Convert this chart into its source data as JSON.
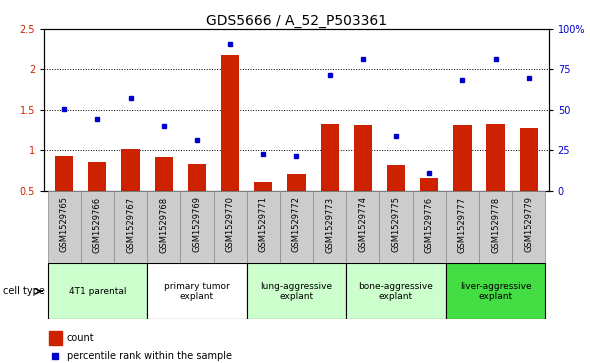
{
  "title": "GDS5666 / A_52_P503361",
  "samples": [
    "GSM1529765",
    "GSM1529766",
    "GSM1529767",
    "GSM1529768",
    "GSM1529769",
    "GSM1529770",
    "GSM1529771",
    "GSM1529772",
    "GSM1529773",
    "GSM1529774",
    "GSM1529775",
    "GSM1529776",
    "GSM1529777",
    "GSM1529778",
    "GSM1529779"
  ],
  "bar_values": [
    0.93,
    0.85,
    1.02,
    0.92,
    0.83,
    2.18,
    0.6,
    0.71,
    1.33,
    1.31,
    0.82,
    0.65,
    1.31,
    1.33,
    1.27
  ],
  "dot_values": [
    1.51,
    1.38,
    1.65,
    1.3,
    1.12,
    2.32,
    0.95,
    0.93,
    1.93,
    2.13,
    1.18,
    0.72,
    1.87,
    2.13,
    1.9
  ],
  "bar_color": "#cc2200",
  "dot_color": "#0000cc",
  "ylim_left": [
    0.5,
    2.5
  ],
  "ylim_right": [
    0,
    100
  ],
  "yticks_left": [
    0.5,
    1.0,
    1.5,
    2.0,
    2.5
  ],
  "ytick_labels_left": [
    "0.5",
    "1",
    "1.5",
    "2",
    "2.5"
  ],
  "yticks_right": [
    0,
    25,
    50,
    75,
    100
  ],
  "ytick_labels_right": [
    "0",
    "25",
    "50",
    "75",
    "100%"
  ],
  "groups": [
    {
      "label": "4T1 parental",
      "start": 0,
      "end": 2,
      "color": "#ccffcc"
    },
    {
      "label": "primary tumor\nexplant",
      "start": 3,
      "end": 5,
      "color": "#ffffff"
    },
    {
      "label": "lung-aggressive\nexplant",
      "start": 6,
      "end": 8,
      "color": "#ccffcc"
    },
    {
      "label": "bone-aggressive\nexplant",
      "start": 9,
      "end": 11,
      "color": "#ccffcc"
    },
    {
      "label": "liver-aggressive\nexplant",
      "start": 12,
      "end": 14,
      "color": "#44dd44"
    }
  ],
  "cell_type_label": "cell type",
  "legend_count_label": "count",
  "legend_percentile_label": "percentile rank within the sample",
  "bar_bottom": 0.5,
  "grid_lines": [
    1.0,
    1.5,
    2.0
  ],
  "title_fontsize": 10,
  "tick_fontsize": 7,
  "label_fontsize": 7,
  "sample_box_color": "#cccccc",
  "outer_bg": "#ffffff"
}
